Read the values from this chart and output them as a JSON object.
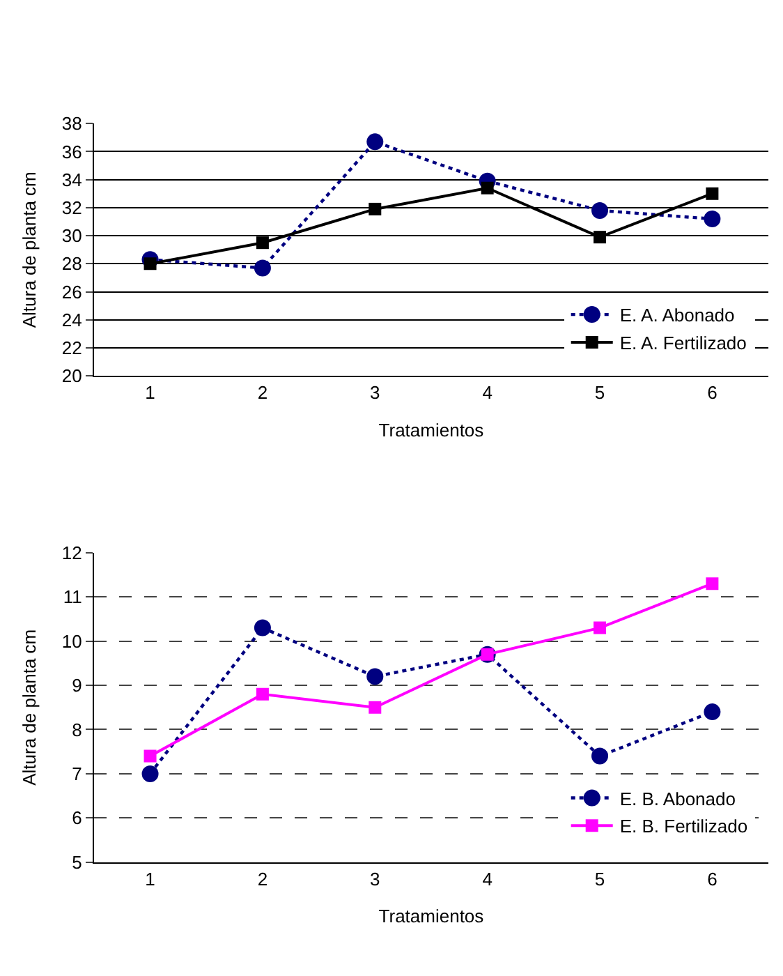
{
  "chart_data": [
    {
      "type": "line",
      "xlabel": "Tratamientos",
      "ylabel": "Altura de planta cm",
      "categories": [
        "1",
        "2",
        "3",
        "4",
        "5",
        "6"
      ],
      "ylim": [
        20,
        38
      ],
      "yticks": [
        20,
        22,
        24,
        26,
        28,
        30,
        32,
        34,
        36,
        38
      ],
      "grid": "y",
      "legend": "bottom right",
      "series": [
        {
          "name": "E. A. Abonado",
          "color": "#000080",
          "marker": "circle",
          "line_style": "dotted",
          "values": [
            28.3,
            27.7,
            36.7,
            33.9,
            31.8,
            31.2
          ]
        },
        {
          "name": "E. A. Fertilizado",
          "color": "#000000",
          "marker": "square",
          "line_style": "solid",
          "values": [
            28.0,
            29.5,
            31.9,
            33.4,
            29.9,
            33.0
          ]
        }
      ]
    },
    {
      "type": "line",
      "xlabel": "Tratamientos",
      "ylabel": "Altura de planta cm",
      "categories": [
        "1",
        "2",
        "3",
        "4",
        "5",
        "6"
      ],
      "ylim": [
        5,
        12
      ],
      "yticks": [
        5,
        6,
        7,
        8,
        9,
        10,
        11,
        12
      ],
      "grid": "y",
      "legend": "bottom right",
      "series": [
        {
          "name": "E. B. Abonado",
          "color": "#000080",
          "marker": "circle",
          "line_style": "dotted",
          "values": [
            7.0,
            10.3,
            9.2,
            9.7,
            7.4,
            8.4
          ]
        },
        {
          "name": "E. B. Fertilizado",
          "color": "#ff00ff",
          "marker": "square",
          "line_style": "solid",
          "values": [
            7.4,
            8.8,
            8.5,
            9.7,
            10.3,
            11.3
          ]
        }
      ]
    }
  ]
}
